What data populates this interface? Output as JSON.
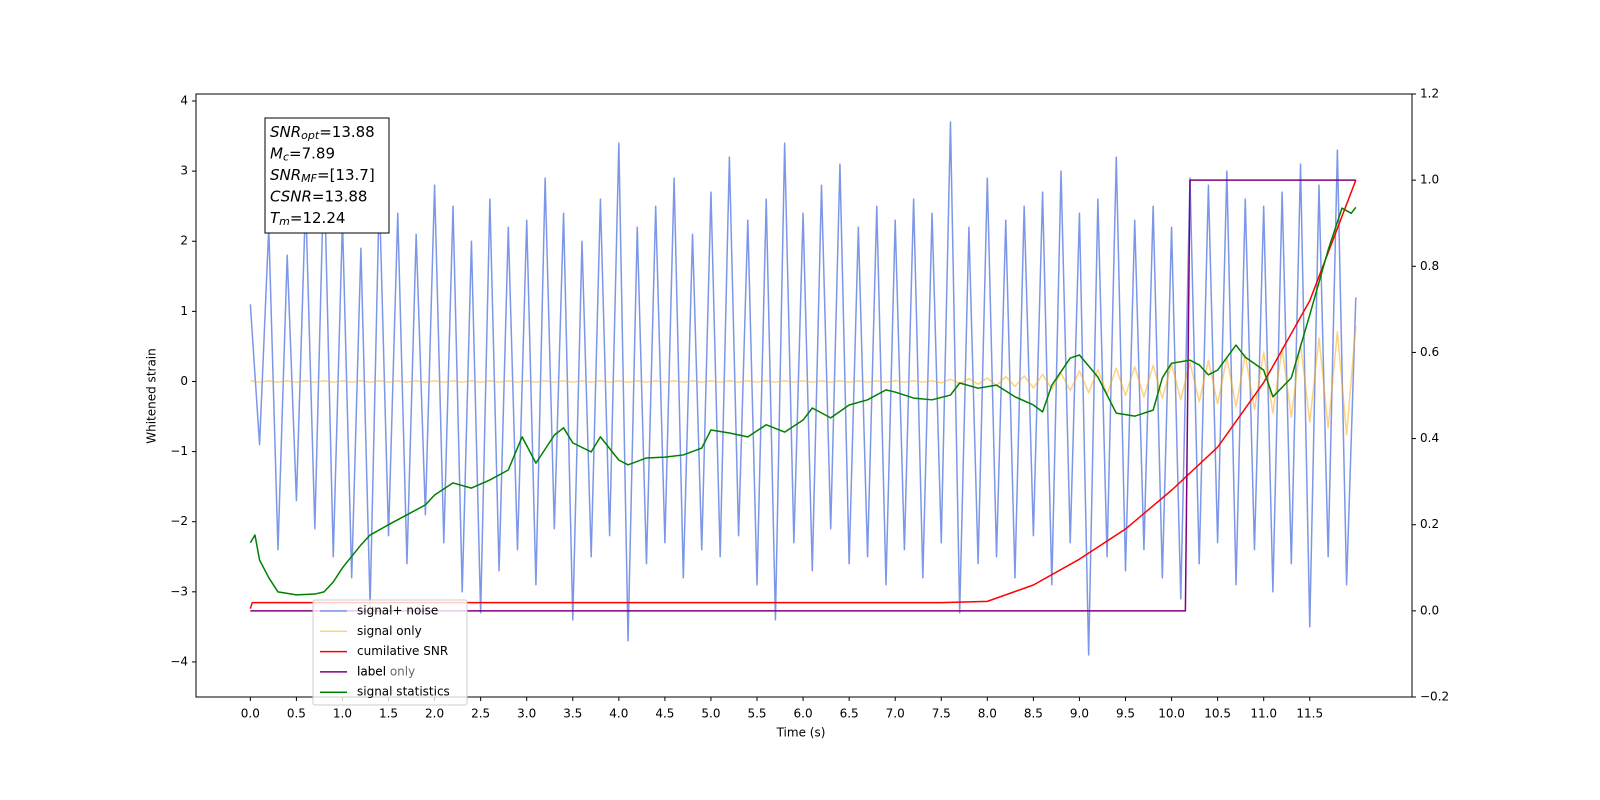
{
  "chart_data": {
    "type": "line",
    "xlabel": "Time (s)",
    "ylabel": "Whitened strain",
    "xlim": [
      -0.59,
      12.61
    ],
    "ylim": [
      -4.5,
      4.1
    ],
    "y2lim": [
      -0.2,
      1.2
    ],
    "xticks": [
      {
        "value": 0,
        "label": "0.0"
      },
      0.5,
      {
        "value": 1,
        "label": "1.0"
      },
      1.5,
      {
        "value": 2,
        "label": "2.0"
      },
      2.5,
      {
        "value": 3,
        "label": "3.0"
      },
      3.5,
      {
        "value": 4,
        "label": "4.0"
      },
      4.5,
      {
        "value": 5,
        "label": "5.0"
      },
      5.5,
      {
        "value": 6,
        "label": "6.0"
      },
      6.5,
      {
        "value": 7,
        "label": "7.0"
      },
      7.5,
      {
        "value": 8,
        "label": "8.0"
      },
      8.5,
      {
        "value": 9,
        "label": "9.0"
      },
      9.5,
      {
        "value": 10,
        "label": "10.0"
      },
      10.5,
      {
        "value": 11,
        "label": "11.0"
      },
      11.5
    ],
    "yticks": [
      {
        "value": -4,
        "label": "−4"
      },
      {
        "value": -3,
        "label": "−3"
      },
      {
        "value": -2,
        "label": "−2"
      },
      {
        "value": -1,
        "label": "−1"
      },
      0,
      1,
      2,
      3,
      4
    ],
    "y2ticks": [
      {
        "value": -0.2,
        "label": "−0.2"
      },
      {
        "value": 0,
        "label": "0.0"
      },
      0.2,
      0.4,
      0.6,
      0.8,
      {
        "value": 1,
        "label": "1.0"
      },
      1.2
    ],
    "x": [
      0,
      0.1,
      0.2,
      0.3,
      0.4,
      0.5,
      0.6,
      0.7,
      0.8,
      0.9,
      1,
      1.1,
      1.2,
      1.3,
      1.4,
      1.5,
      1.6,
      1.7,
      1.8,
      1.9,
      2,
      2.1,
      2.2,
      2.3,
      2.4,
      2.5,
      2.6,
      2.7,
      2.8,
      2.9,
      3,
      3.1,
      3.2,
      3.3,
      3.4,
      3.5,
      3.6,
      3.7,
      3.8,
      3.9,
      4,
      4.1,
      4.2,
      4.3,
      4.4,
      4.5,
      4.6,
      4.7,
      4.8,
      4.9,
      5,
      5.1,
      5.2,
      5.3,
      5.4,
      5.5,
      5.6,
      5.7,
      5.8,
      5.9,
      6,
      6.1,
      6.2,
      6.3,
      6.4,
      6.5,
      6.6,
      6.7,
      6.8,
      6.9,
      7,
      7.1,
      7.2,
      7.3,
      7.4,
      7.5,
      7.6,
      7.7,
      7.8,
      7.9,
      8,
      8.1,
      8.2,
      8.3,
      8.4,
      8.5,
      8.6,
      8.7,
      8.8,
      8.9,
      9,
      9.1,
      9.2,
      9.3,
      9.4,
      9.5,
      9.6,
      9.7,
      9.8,
      9.9,
      10,
      10.1,
      10.2,
      10.3,
      10.4,
      10.5,
      10.6,
      10.7,
      10.8,
      10.9,
      11,
      11.1,
      11.2,
      11.3,
      11.4,
      11.5,
      11.6,
      11.7,
      11.8,
      11.9,
      12
    ],
    "series": [
      {
        "name": "signal+ noise",
        "color": "#6f8ce6",
        "opacity": 0.9,
        "values": [
          1.1,
          -0.9,
          2.2,
          -2.4,
          1.8,
          -1.7,
          2.6,
          -2.1,
          3.1,
          -2.5,
          2.3,
          -2.8,
          1.9,
          -3.2,
          2.7,
          -2.2,
          2.4,
          -2.6,
          2.1,
          -1.9,
          2.8,
          -2.3,
          2.5,
          -3.0,
          2.0,
          -3.3,
          2.6,
          -2.7,
          2.2,
          -2.4,
          2.3,
          -2.9,
          2.9,
          -2.1,
          2.4,
          -3.4,
          2.0,
          -2.5,
          2.6,
          -2.2,
          3.4,
          -3.7,
          2.2,
          -2.6,
          2.5,
          -2.3,
          2.9,
          -2.8,
          2.1,
          -2.4,
          2.7,
          -2.5,
          3.2,
          -2.2,
          2.3,
          -2.9,
          2.6,
          -3.4,
          3.4,
          -2.3,
          2.4,
          -2.7,
          2.8,
          -2.1,
          3.1,
          -2.6,
          2.2,
          -2.5,
          2.5,
          -2.9,
          2.3,
          -2.4,
          2.6,
          -2.8,
          2.4,
          -2.3,
          3.7,
          -3.3,
          2.2,
          -2.6,
          2.9,
          -2.5,
          2.3,
          -2.8,
          2.5,
          -2.2,
          2.7,
          -2.9,
          3.0,
          -2.3,
          2.4,
          -3.9,
          2.6,
          -2.5,
          3.2,
          -2.7,
          2.3,
          -2.4,
          2.5,
          -2.8,
          2.2,
          -3.1,
          2.9,
          -2.6,
          2.8,
          -2.3,
          3.0,
          -2.9,
          2.6,
          -2.4,
          2.5,
          -3.0,
          2.7,
          -2.6,
          3.1,
          -3.5,
          2.8,
          -2.5,
          3.3,
          -2.9,
          1.2
        ]
      },
      {
        "name": "signal only",
        "color": "#ffa500",
        "opacity": 0.5,
        "values": [
          0.01,
          -0.01,
          0.01,
          -0.01,
          0.01,
          -0.01,
          0.01,
          -0.01,
          0.01,
          -0.01,
          0.01,
          -0.01,
          0.01,
          -0.01,
          0.01,
          -0.01,
          0.01,
          -0.01,
          0.01,
          -0.01,
          0.01,
          -0.01,
          0.01,
          -0.01,
          0.01,
          -0.01,
          0.01,
          -0.01,
          0.01,
          -0.01,
          0.01,
          -0.01,
          0.01,
          -0.01,
          0.01,
          -0.01,
          0.01,
          -0.01,
          0.01,
          -0.01,
          0.01,
          -0.01,
          0.01,
          -0.01,
          0.01,
          -0.01,
          0.01,
          -0.01,
          0.01,
          -0.01,
          0.01,
          -0.01,
          0.01,
          -0.01,
          0.01,
          -0.01,
          0.01,
          -0.01,
          0.01,
          -0.01,
          0.01,
          -0.01,
          0.01,
          -0.01,
          0.01,
          -0.01,
          0.01,
          -0.01,
          0.01,
          -0.01,
          0.01,
          -0.01,
          0.01,
          -0.01,
          0.01,
          -0.02,
          0.03,
          -0.03,
          0.04,
          -0.04,
          0.05,
          -0.06,
          0.07,
          -0.07,
          0.08,
          -0.09,
          0.1,
          -0.11,
          0.12,
          -0.13,
          0.15,
          -0.16,
          0.17,
          -0.18,
          0.19,
          -0.2,
          0.21,
          -0.22,
          0.23,
          -0.24,
          0.25,
          -0.26,
          0.27,
          -0.29,
          0.3,
          -0.32,
          0.34,
          -0.36,
          0.38,
          -0.4,
          0.42,
          -0.45,
          0.48,
          -0.51,
          0.54,
          -0.58,
          0.62,
          -0.66,
          0.71,
          -0.76,
          0.8
        ]
      },
      {
        "name": "cumilative SNR",
        "color": "#ff0000",
        "axis": "y2",
        "x": [
          0,
          0.02,
          1,
          3,
          5,
          7,
          7.5,
          8,
          8.5,
          9,
          9.5,
          10,
          10.5,
          11,
          11.5,
          12
        ],
        "values": [
          0.005,
          0.019,
          0.019,
          0.019,
          0.019,
          0.019,
          0.019,
          0.022,
          0.06,
          0.12,
          0.19,
          0.28,
          0.38,
          0.53,
          0.72,
          1.0
        ]
      },
      {
        "name": "label",
        "color": "#800080",
        "axis": "y2",
        "x": [
          0,
          10.15,
          10.2,
          12
        ],
        "values": [
          0,
          0,
          1,
          1
        ]
      },
      {
        "name": "signal statistics",
        "color": "#008000",
        "axis": "y2",
        "x": [
          0,
          0.05,
          0.1,
          0.2,
          0.3,
          0.5,
          0.7,
          0.8,
          0.9,
          1,
          1.2,
          1.3,
          1.5,
          1.7,
          1.9,
          2,
          2.2,
          2.4,
          2.6,
          2.8,
          2.95,
          3.1,
          3.3,
          3.4,
          3.5,
          3.7,
          3.8,
          4,
          4.1,
          4.3,
          4.5,
          4.7,
          4.9,
          5,
          5.2,
          5.4,
          5.6,
          5.8,
          6,
          6.1,
          6.3,
          6.5,
          6.7,
          6.9,
          7,
          7.2,
          7.4,
          7.6,
          7.7,
          7.9,
          8.1,
          8.3,
          8.5,
          8.6,
          8.7,
          8.9,
          9,
          9.2,
          9.4,
          9.6,
          9.8,
          9.9,
          10,
          10.2,
          10.3,
          10.4,
          10.5,
          10.7,
          10.8,
          11,
          11.1,
          11.3,
          11.5,
          11.7,
          11.85,
          11.95,
          12
        ],
        "values": [
          0.158,
          0.176,
          0.118,
          0.077,
          0.044,
          0.037,
          0.039,
          0.044,
          0.067,
          0.1,
          0.153,
          0.176,
          0.2,
          0.223,
          0.246,
          0.269,
          0.297,
          0.285,
          0.304,
          0.327,
          0.404,
          0.343,
          0.408,
          0.425,
          0.39,
          0.369,
          0.404,
          0.35,
          0.339,
          0.355,
          0.357,
          0.362,
          0.378,
          0.42,
          0.413,
          0.404,
          0.432,
          0.415,
          0.443,
          0.471,
          0.448,
          0.478,
          0.49,
          0.513,
          0.508,
          0.494,
          0.49,
          0.501,
          0.529,
          0.517,
          0.524,
          0.497,
          0.478,
          0.462,
          0.524,
          0.587,
          0.594,
          0.543,
          0.459,
          0.452,
          0.466,
          0.541,
          0.575,
          0.582,
          0.571,
          0.548,
          0.559,
          0.617,
          0.589,
          0.559,
          0.497,
          0.541,
          0.687,
          0.838,
          0.935,
          0.923,
          0.937
        ]
      }
    ],
    "faded_legend_label": "label only",
    "annotations": [
      {
        "symbol": "SNR",
        "subscript": "opt",
        "text": "=13.88"
      },
      {
        "symbol": "M",
        "subscript": "c",
        "text": "=7.89"
      },
      {
        "symbol": "SNR",
        "subscript": "MF",
        "text": "=[13.7]"
      },
      {
        "symbol": "CSNR",
        "text": "=13.88"
      },
      {
        "symbol": "T",
        "subscript": "m",
        "text": "=12.24"
      }
    ],
    "legend": "lower left"
  }
}
